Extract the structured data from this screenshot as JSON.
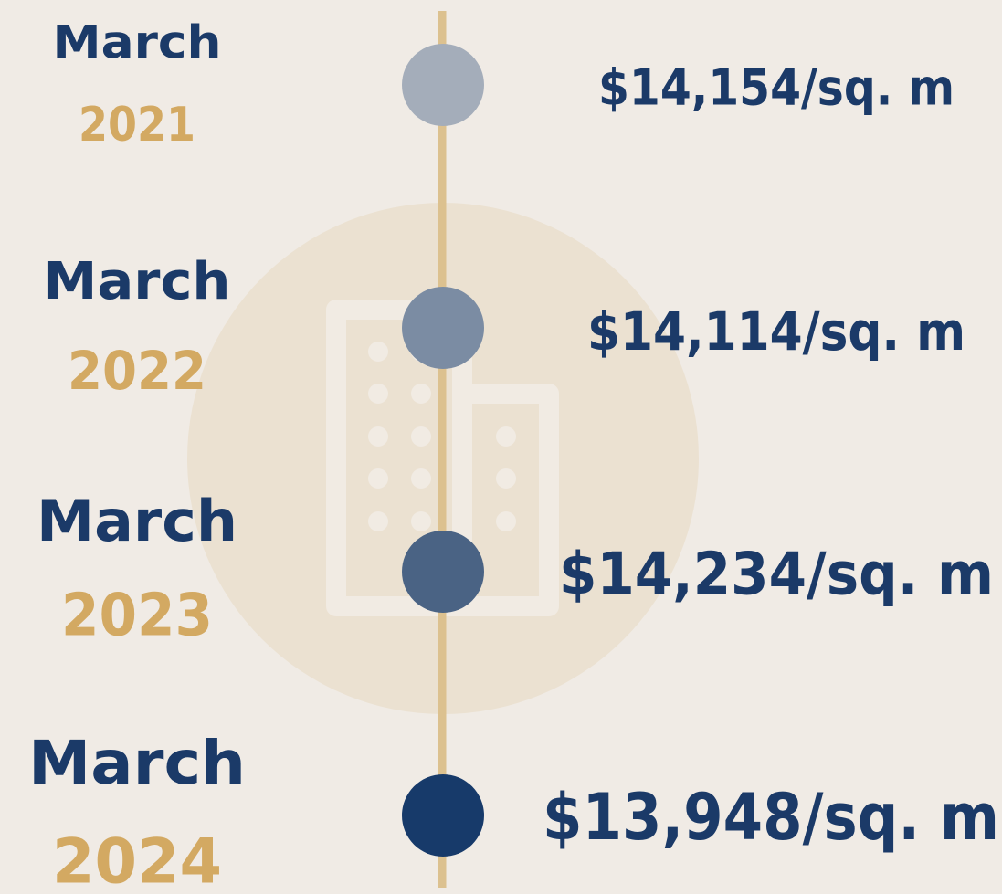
{
  "items": [
    {
      "month": "March",
      "year": "2021",
      "price": "$14,154/sq. m"
    },
    {
      "month": "March",
      "year": "2022",
      "price": "$14,114/sq. m"
    },
    {
      "month": "March",
      "year": "2023",
      "price": "$14,234/sq. m"
    },
    {
      "month": "March",
      "year": "2024",
      "price": "$13,948/sq. m"
    }
  ]
}
